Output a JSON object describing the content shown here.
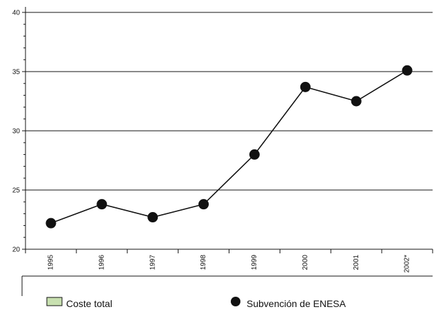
{
  "chart_data": {
    "type": "line",
    "title": "",
    "xlabel": "",
    "ylabel": "",
    "categories": [
      "1995",
      "1996",
      "1997",
      "1998",
      "1999",
      "2000",
      "2001",
      "2002*"
    ],
    "series": [
      {
        "name": "Subvención de ENESA",
        "values": [
          22.2,
          23.8,
          22.7,
          23.8,
          28.0,
          33.7,
          32.5,
          35.1
        ]
      }
    ],
    "ylim": [
      20,
      40
    ],
    "yticks": [
      "20",
      "25",
      "30",
      "35",
      "40"
    ],
    "grid": "horizontal",
    "legend": {
      "position": "bottom",
      "entries": [
        {
          "label": "Coste total",
          "marker": "rectangle",
          "color": "#c8e0b0"
        },
        {
          "label": "Subvención de ENESA",
          "marker": "circle",
          "color": "#111111"
        }
      ]
    }
  },
  "colors": {
    "line": "#111111",
    "marker": "#111111",
    "grid": "#111111",
    "legend_box": "#c8e0b0"
  }
}
